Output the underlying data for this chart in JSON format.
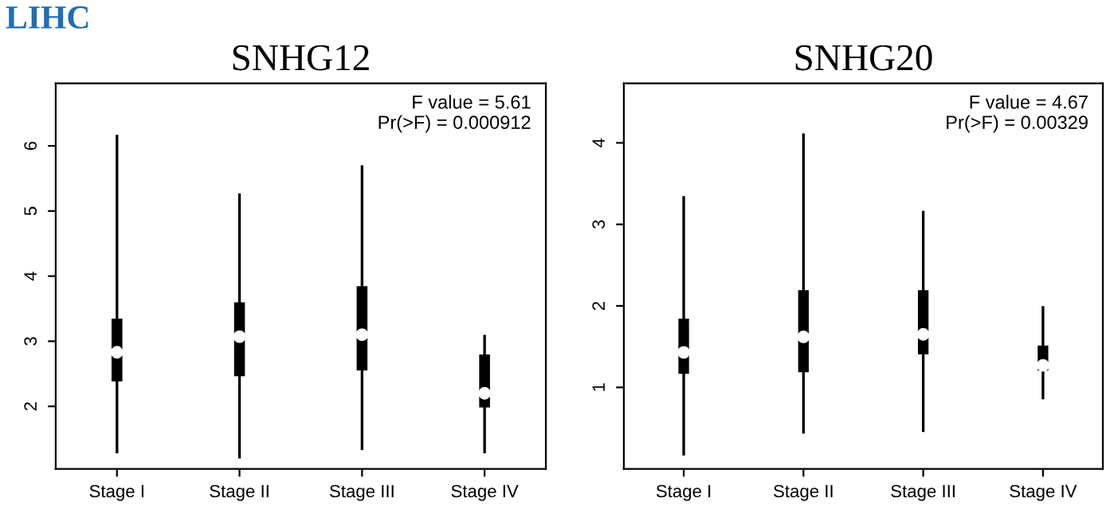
{
  "chart_data": [
    {
      "type": "box",
      "title": "SNHG12",
      "categories": [
        "Stage I",
        "Stage II",
        "Stage III",
        "Stage IV"
      ],
      "color": "#000000",
      "ylim": [
        1.04,
        6.96
      ],
      "yticks": [
        2,
        3,
        4,
        5,
        6
      ],
      "grid": false,
      "boxes": [
        {
          "low": 1.3,
          "q1": 2.4,
          "median": 2.83,
          "q3": 3.33,
          "high": 6.15
        },
        {
          "low": 1.22,
          "q1": 2.48,
          "median": 3.07,
          "q3": 3.58,
          "high": 5.25
        },
        {
          "low": 1.35,
          "q1": 2.57,
          "median": 3.1,
          "q3": 3.83,
          "high": 5.68
        },
        {
          "low": 1.3,
          "q1": 2.0,
          "median": 2.2,
          "q3": 2.78,
          "high": 3.08
        }
      ],
      "annotations": [
        "F value = 5.61\nPr(>F) = 0.000912",
        "LIHC"
      ]
    },
    {
      "type": "box",
      "title": "SNHG20",
      "categories": [
        "Stage I",
        "Stage II",
        "Stage III",
        "Stage IV"
      ],
      "color": "#000000",
      "ylim": [
        0,
        4.73
      ],
      "yticks": [
        1,
        2,
        3,
        4
      ],
      "grid": false,
      "boxes": [
        {
          "low": 0.18,
          "q1": 1.18,
          "median": 1.43,
          "q3": 1.83,
          "high": 3.33
        },
        {
          "low": 0.45,
          "q1": 1.2,
          "median": 1.62,
          "q3": 2.18,
          "high": 4.1
        },
        {
          "low": 0.47,
          "q1": 1.42,
          "median": 1.65,
          "q3": 2.18,
          "high": 3.15
        },
        {
          "low": 0.87,
          "q1": 1.22,
          "median": 1.27,
          "q3": 1.5,
          "high": 1.98
        }
      ],
      "annotations": [
        "F value = 4.67\nPr(>F) = 0.00329"
      ]
    }
  ]
}
